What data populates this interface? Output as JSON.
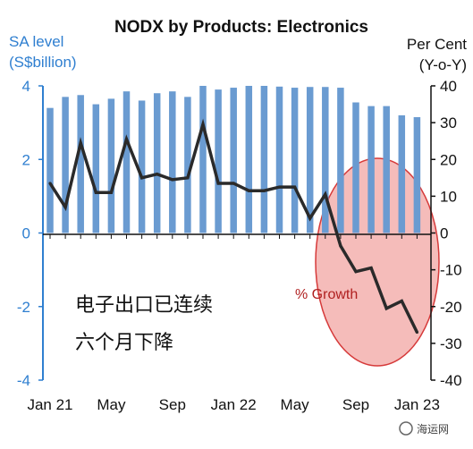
{
  "chart_data": {
    "type": "bar+line",
    "title": "NODX by Products: Electronics",
    "left_axis": {
      "label_line1": "SA level",
      "label_line2": "(S$billion)",
      "ticks": [
        4,
        2,
        0,
        -2,
        -4
      ],
      "ylim": [
        -4,
        4
      ]
    },
    "right_axis": {
      "label_line1": "Per Cent",
      "label_line2": "(Y-o-Y)",
      "ticks": [
        40,
        30,
        20,
        10,
        0,
        -10,
        -20,
        -30,
        -40
      ],
      "ylim": [
        -40,
        40
      ]
    },
    "x_tick_labels": [
      "Jan 21",
      "May",
      "Sep",
      "Jan 22",
      "May",
      "Sep",
      "Jan 23"
    ],
    "months": [
      "Jan 21",
      "Feb 21",
      "Mar 21",
      "Apr 21",
      "May 21",
      "Jun 21",
      "Jul 21",
      "Aug 21",
      "Sep 21",
      "Oct 21",
      "Nov 21",
      "Dec 21",
      "Jan 22",
      "Feb 22",
      "Mar 22",
      "Apr 22",
      "May 22",
      "Jun 22",
      "Jul 22",
      "Aug 22",
      "Sep 22",
      "Oct 22",
      "Nov 22",
      "Dec 22",
      "Jan 23"
    ],
    "series": [
      {
        "type": "bar",
        "axis": "left",
        "values": [
          3.4,
          3.7,
          3.75,
          3.5,
          3.65,
          3.85,
          3.6,
          3.8,
          3.85,
          3.7,
          4.0,
          3.9,
          3.95,
          4.0,
          4.0,
          3.98,
          3.95,
          3.97,
          3.97,
          3.95,
          3.55,
          3.45,
          3.45,
          3.2,
          3.15
        ]
      },
      {
        "type": "line",
        "name": "% Growth",
        "axis": "right",
        "values": [
          13.5,
          7,
          24.5,
          11,
          11,
          25.5,
          15,
          16,
          14.5,
          15,
          29.5,
          13.5,
          13.5,
          11.5,
          11.5,
          12.5,
          12.5,
          4,
          10.5,
          -3.5,
          -10.5,
          -9.5,
          -20.5,
          -18.5,
          -27
        ]
      }
    ],
    "colors": {
      "bars": "#6a9bd1",
      "line": "#2a2a2a",
      "left_axis": "#2f7fd0",
      "highlight_fill": "#f3b0ae",
      "highlight_stroke": "#d63a3a",
      "growth_label": "#b02020"
    }
  },
  "annotation": {
    "line1": "电子出口已连续",
    "line2": "六个月下降"
  },
  "watermark": "海运网"
}
